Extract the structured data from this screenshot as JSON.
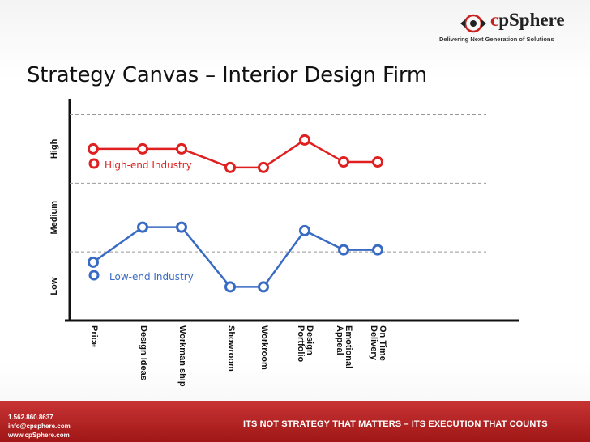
{
  "logo": {
    "brand_prefix": "c",
    "brand_rest": "pSphere",
    "tagline": "Delivering Next Generation of Solutions"
  },
  "slide": {
    "title": "Strategy Canvas – Interior Design Firm"
  },
  "footer": {
    "phone": "1.562.860.8637",
    "email": "info@cpsphere.com",
    "website": "www.cpSphere.com",
    "slogan": "ITS NOT STRATEGY THAT MATTERS – ITS EXECUTION THAT COUNTS"
  },
  "colors": {
    "high_end": "#e02020",
    "low_end": "#3a6bc4",
    "footer": "#b22222",
    "grid": "#999999"
  },
  "chart_data": {
    "type": "line",
    "title": "Strategy Canvas – Interior Design Firm",
    "xlabel": "",
    "ylabel": "",
    "categories": [
      "Price",
      "Design Ideas",
      "Workman ship",
      "Showroom",
      "Workroom",
      "Design Portfolio",
      "Emotional Appeal",
      "On Time Delivery"
    ],
    "y_levels": [
      "Low",
      "Medium",
      "High"
    ],
    "ylim": [
      0,
      3
    ],
    "grid": true,
    "series": [
      {
        "name": "High-end Industry",
        "color": "#e02020",
        "values": [
          2.5,
          2.5,
          2.5,
          2.23,
          2.23,
          2.63,
          2.31,
          2.31
        ]
      },
      {
        "name": "Low-end Industry",
        "color": "#3a6bc4",
        "values": [
          0.85,
          1.36,
          1.36,
          0.49,
          0.49,
          1.31,
          1.03,
          1.03
        ]
      }
    ]
  }
}
